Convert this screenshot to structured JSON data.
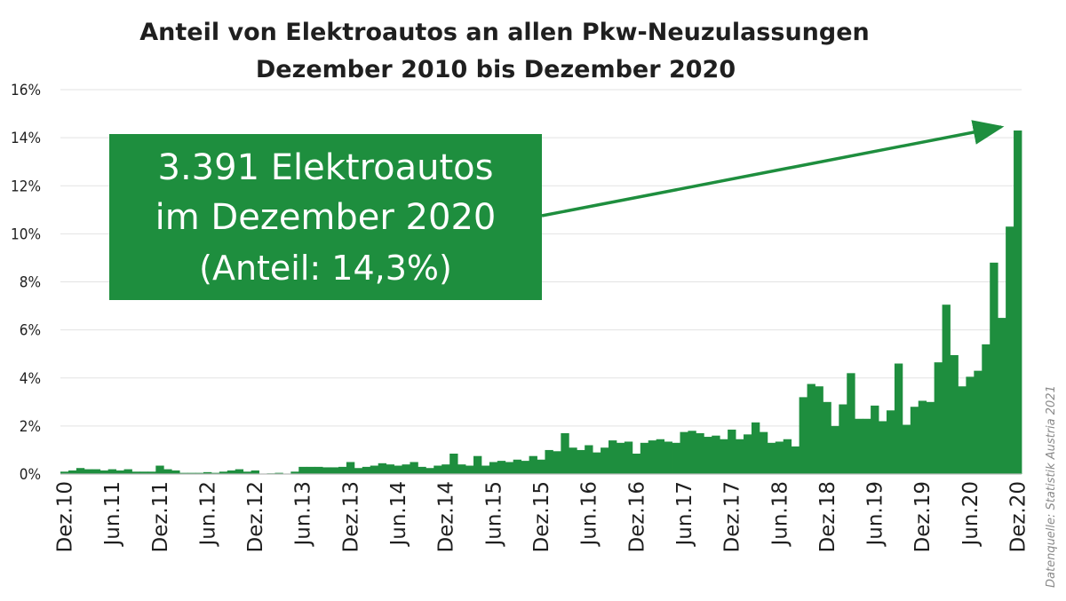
{
  "chart_data": {
    "type": "bar",
    "title": "Anteil von Elektroautos an allen Pkw-Neuzulassungen",
    "subtitle": "Dezember 2010 bis Dezember 2020",
    "ylim": [
      0,
      16
    ],
    "ytick_labels": [
      "0%",
      "2%",
      "4%",
      "6%",
      "8%",
      "10%",
      "12%",
      "14%",
      "16%"
    ],
    "grid": true,
    "xtick_labels": [
      "Dez.10",
      "Jun.11",
      "Dez.11",
      "Jun.12",
      "Dez.12",
      "Jun.13",
      "Dez.13",
      "Jun.14",
      "Dez.14",
      "Jun.15",
      "Dez.15",
      "Jun.16",
      "Dez.16",
      "Jun.17",
      "Dez.17",
      "Jun.18",
      "Dez.18",
      "Jun.19",
      "Dez.19",
      "Jun.20",
      "Dez.20"
    ],
    "color": "#1e8e3e",
    "values": [
      0.1,
      0.15,
      0.25,
      0.2,
      0.2,
      0.15,
      0.2,
      0.15,
      0.2,
      0.1,
      0.1,
      0.1,
      0.35,
      0.2,
      0.15,
      0.05,
      0.05,
      0.05,
      0.08,
      0.05,
      0.1,
      0.15,
      0.2,
      0.1,
      0.15,
      0.02,
      0.03,
      0.05,
      0.02,
      0.1,
      0.3,
      0.3,
      0.3,
      0.28,
      0.28,
      0.3,
      0.5,
      0.25,
      0.3,
      0.35,
      0.45,
      0.4,
      0.35,
      0.4,
      0.5,
      0.3,
      0.25,
      0.35,
      0.4,
      0.85,
      0.4,
      0.35,
      0.75,
      0.35,
      0.5,
      0.55,
      0.5,
      0.6,
      0.55,
      0.75,
      0.6,
      1.0,
      0.95,
      1.7,
      1.1,
      1.0,
      1.2,
      0.9,
      1.1,
      1.4,
      1.3,
      1.35,
      0.85,
      1.3,
      1.4,
      1.45,
      1.35,
      1.3,
      1.75,
      1.8,
      1.7,
      1.55,
      1.6,
      1.45,
      1.85,
      1.45,
      1.65,
      2.15,
      1.75,
      1.3,
      1.35,
      1.45,
      1.15,
      3.2,
      3.75,
      3.65,
      3.0,
      2.0,
      2.9,
      4.2,
      2.3,
      2.3,
      2.85,
      2.2,
      2.65,
      4.6,
      2.05,
      2.8,
      3.05,
      3.0,
      4.65,
      7.05,
      4.95,
      3.65,
      4.05,
      4.3,
      5.4,
      8.8,
      6.5,
      10.3,
      14.3
    ]
  },
  "callout": {
    "line1": "3.391 Elektroautos",
    "line2": "im Dezember 2020",
    "line3": "(Anteil: 14,3%)"
  },
  "source": "Datenquelle: Statistik Austria 2021"
}
